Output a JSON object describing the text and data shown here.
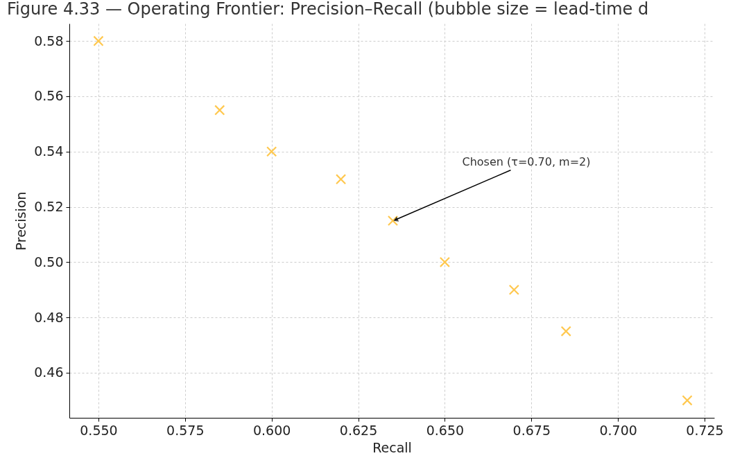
{
  "chart_data": {
    "type": "scatter",
    "title": "Figure 4.33 — Operating Frontier: Precision–Recall (bubble size = lead-time d",
    "xlabel": "Recall",
    "ylabel": "Precision",
    "x": [
      0.55,
      0.585,
      0.6,
      0.62,
      0.635,
      0.65,
      0.67,
      0.685,
      0.72
    ],
    "series": [
      {
        "color": "#ffc84f",
        "values": [
          0.58,
          0.555,
          0.54,
          0.53,
          0.515,
          0.5,
          0.49,
          0.475,
          0.45
        ]
      }
    ],
    "xlim": [
      0.5416,
      0.7278
    ],
    "ylim": [
      0.4437,
      0.5863
    ],
    "xticks": [
      {
        "value": 0.55,
        "label": "0.550"
      },
      {
        "value": 0.575,
        "label": "0.575"
      },
      {
        "value": 0.6,
        "label": "0.600"
      },
      {
        "value": 0.625,
        "label": "0.625"
      },
      {
        "value": 0.65,
        "label": "0.650"
      },
      {
        "value": 0.675,
        "label": "0.675"
      },
      {
        "value": 0.7,
        "label": "0.700"
      },
      {
        "value": 0.725,
        "label": "0.725"
      }
    ],
    "yticks": [
      {
        "value": 0.46,
        "label": "0.46"
      },
      {
        "value": 0.48,
        "label": "0.48"
      },
      {
        "value": 0.5,
        "label": "0.50"
      },
      {
        "value": 0.52,
        "label": "0.52"
      },
      {
        "value": 0.54,
        "label": "0.54"
      },
      {
        "value": 0.56,
        "label": "0.56"
      },
      {
        "value": 0.58,
        "label": "0.58"
      }
    ],
    "annotations": [
      {
        "text": "Chosen (τ=0.70, m=2)",
        "x": 0.635,
        "y": 0.515
      }
    ],
    "grid": true,
    "marker": "cross"
  }
}
